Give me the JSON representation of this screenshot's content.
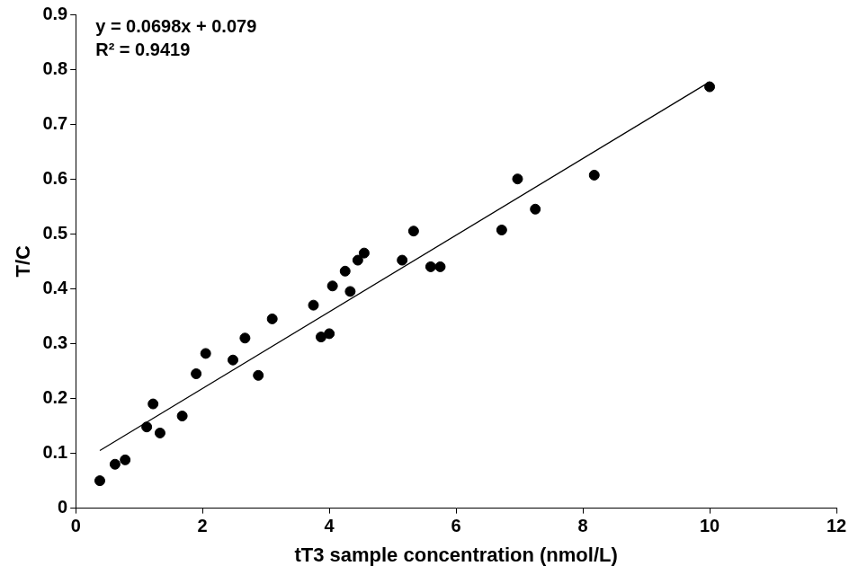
{
  "chart_data": {
    "type": "scatter",
    "x_label": "tT3 sample concentration (nmol/L)",
    "y_label": "T/C",
    "annotations": [
      "y = 0.0698x + 0.079",
      "R² = 0.9419"
    ],
    "x": [
      0.38,
      0.62,
      0.78,
      1.12,
      1.22,
      1.33,
      1.68,
      1.9,
      2.05,
      2.48,
      2.67,
      2.88,
      3.1,
      3.75,
      3.87,
      4.0,
      4.05,
      4.25,
      4.33,
      4.45,
      4.55,
      5.15,
      5.33,
      5.6,
      5.75,
      6.72,
      6.97,
      7.25,
      8.18,
      10.0
    ],
    "values": [
      0.05,
      0.08,
      0.088,
      0.148,
      0.19,
      0.137,
      0.168,
      0.245,
      0.282,
      0.27,
      0.31,
      0.242,
      0.345,
      0.37,
      0.312,
      0.318,
      0.405,
      0.432,
      0.395,
      0.452,
      0.465,
      0.452,
      0.505,
      0.44,
      0.44,
      0.507,
      0.6,
      0.545,
      0.607,
      0.768
    ],
    "trendline": {
      "x": [
        0.38,
        10.0
      ],
      "values": [
        0.105,
        0.777
      ],
      "color": "#000000",
      "line_style": "solid"
    },
    "color": "#000000",
    "marker": "circle",
    "xlim": [
      0,
      12
    ],
    "xticks": [
      0,
      2,
      4,
      6,
      8,
      10,
      12
    ],
    "ylim": [
      0,
      0.9
    ],
    "yticks": [
      0,
      0.1,
      0.2,
      0.3,
      0.4,
      0.5,
      0.6,
      0.7,
      0.8,
      0.9
    ],
    "grid": false
  }
}
